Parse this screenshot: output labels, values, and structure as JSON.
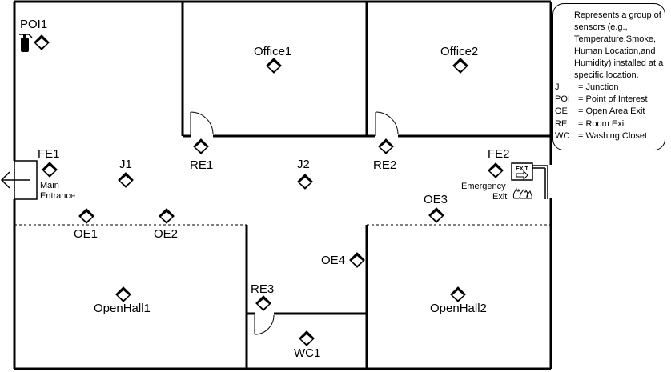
{
  "rooms": {
    "office1": "Office1",
    "office2": "Office2",
    "openhall1": "OpenHall1",
    "openhall2": "OpenHall2",
    "wc1": "WC1"
  },
  "sensors": {
    "poi1": "POI1",
    "fe1": "FE1",
    "fe2": "FE2",
    "j1": "J1",
    "j2": "J2",
    "re1": "RE1",
    "re2": "RE2",
    "re3": "RE3",
    "oe1": "OE1",
    "oe2": "OE2",
    "oe3": "OE3",
    "oe4": "OE4"
  },
  "labels": {
    "main_entrance_1": "Main",
    "main_entrance_2": "Entrance",
    "emergency_exit_1": "Emergency",
    "emergency_exit_2": "Exit",
    "exit_sign": "EXIT"
  },
  "legend": {
    "description": "Represents a group of sensors (e.g., Temperature,Smoke, Human Location,and Humidity) installed at a specific location.",
    "items": [
      {
        "key": "J",
        "value": "= Junction"
      },
      {
        "key": "POI",
        "value": "= Point of Interest"
      },
      {
        "key": "OE",
        "value": "= Open Area Exit"
      },
      {
        "key": "RE",
        "value": "= Room Exit"
      },
      {
        "key": "WC",
        "value": "= Washing Closet"
      }
    ]
  },
  "colors": {
    "line": "#000000",
    "background": "#ffffff"
  }
}
